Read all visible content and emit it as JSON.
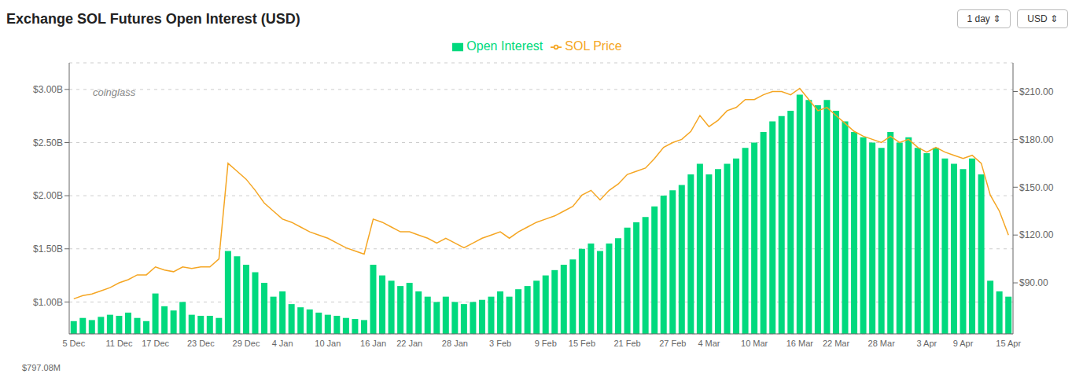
{
  "chart_data": {
    "type": "bar",
    "title": "Exchange SOL Futures Open Interest (USD)",
    "categories": [
      "5 Dec",
      null,
      null,
      null,
      null,
      "11 Dec",
      null,
      null,
      null,
      "17 Dec",
      null,
      null,
      null,
      null,
      "23 Dec",
      null,
      null,
      null,
      null,
      "29 Dec",
      null,
      null,
      null,
      "4 Jan",
      null,
      null,
      null,
      null,
      "10 Jan",
      null,
      null,
      null,
      null,
      "16 Jan",
      null,
      null,
      null,
      "22 Jan",
      null,
      null,
      null,
      null,
      "28 Jan",
      null,
      null,
      null,
      null,
      "3 Feb",
      null,
      null,
      null,
      null,
      "9 Feb",
      null,
      null,
      null,
      "15 Feb",
      null,
      null,
      null,
      null,
      "21 Feb",
      null,
      null,
      null,
      null,
      "27 Feb",
      null,
      null,
      null,
      "4 Mar",
      null,
      null,
      null,
      null,
      "10 Mar",
      null,
      null,
      null,
      null,
      "16 Mar",
      null,
      null,
      null,
      "22 Mar",
      null,
      null,
      null,
      null,
      "28 Mar",
      null,
      null,
      null,
      null,
      "3 Apr",
      null,
      null,
      null,
      "9 Apr",
      null,
      null,
      null,
      null,
      "15 Apr"
    ],
    "series": [
      {
        "name": "Open Interest",
        "type": "bar",
        "color": "#00d97e",
        "values": [
          820000000,
          850000000,
          830000000,
          860000000,
          880000000,
          870000000,
          900000000,
          850000000,
          820000000,
          1080000000,
          960000000,
          920000000,
          1000000000,
          880000000,
          870000000,
          870000000,
          850000000,
          1480000000,
          1430000000,
          1350000000,
          1280000000,
          1180000000,
          1050000000,
          1100000000,
          980000000,
          950000000,
          930000000,
          900000000,
          880000000,
          870000000,
          850000000,
          840000000,
          830000000,
          1350000000,
          1250000000,
          1200000000,
          1150000000,
          1180000000,
          1100000000,
          1050000000,
          1000000000,
          1050000000,
          1000000000,
          980000000,
          1000000000,
          1020000000,
          1050000000,
          1100000000,
          1050000000,
          1120000000,
          1150000000,
          1200000000,
          1250000000,
          1300000000,
          1350000000,
          1400000000,
          1500000000,
          1550000000,
          1480000000,
          1550000000,
          1600000000,
          1700000000,
          1750000000,
          1800000000,
          1900000000,
          2000000000,
          2050000000,
          2100000000,
          2200000000,
          2300000000,
          2200000000,
          2250000000,
          2300000000,
          2350000000,
          2450000000,
          2500000000,
          2600000000,
          2700000000,
          2750000000,
          2800000000,
          2950000000,
          2900000000,
          2850000000,
          2900000000,
          2800000000,
          2700000000,
          2600000000,
          2550000000,
          2500000000,
          2450000000,
          2600000000,
          2500000000,
          2550000000,
          2450000000,
          2400000000,
          2450000000,
          2350000000,
          2300000000,
          2250000000,
          2350000000,
          2200000000,
          1200000000,
          1100000000,
          1050000000
        ]
      },
      {
        "name": "SOL Price",
        "type": "line",
        "color": "#f5a623",
        "axis": "y2",
        "values": [
          80,
          82,
          83,
          85,
          87,
          90,
          92,
          95,
          95,
          100,
          98,
          97,
          100,
          99,
          100,
          100,
          105,
          165,
          160,
          155,
          148,
          140,
          135,
          130,
          128,
          125,
          122,
          120,
          118,
          115,
          112,
          110,
          108,
          130,
          128,
          125,
          122,
          122,
          120,
          118,
          115,
          118,
          115,
          112,
          115,
          118,
          120,
          122,
          118,
          122,
          125,
          128,
          130,
          132,
          135,
          138,
          145,
          148,
          142,
          148,
          152,
          158,
          160,
          162,
          168,
          175,
          178,
          180,
          185,
          195,
          188,
          192,
          198,
          200,
          205,
          205,
          208,
          210,
          210,
          208,
          212,
          205,
          198,
          200,
          195,
          190,
          185,
          182,
          180,
          178,
          182,
          178,
          180,
          175,
          172,
          175,
          172,
          170,
          168,
          170,
          165,
          145,
          135,
          120
        ]
      }
    ],
    "ylim": [
      700000000,
      3250000000
    ],
    "yticks": [
      {
        "value": 1000000000,
        "label": "$1.00B"
      },
      {
        "value": 1500000000,
        "label": "$1.50B"
      },
      {
        "value": 2000000000,
        "label": "$2.00B"
      },
      {
        "value": 2500000000,
        "label": "$2.50B"
      },
      {
        "value": 3000000000,
        "label": "$3.00B"
      }
    ],
    "y2lim": [
      58,
      228
    ],
    "y2ticks": [
      {
        "value": 90,
        "label": "$90.00"
      },
      {
        "value": 120,
        "label": "$120.00"
      },
      {
        "value": 150,
        "label": "$150.00"
      },
      {
        "value": 180,
        "label": "$180.00"
      },
      {
        "value": 210,
        "label": "$210.00"
      }
    ],
    "grid": true,
    "legend": "top",
    "annotations": [
      "$797.08M",
      "1 day ⇕",
      "USD ⇕",
      "coinglass"
    ]
  }
}
